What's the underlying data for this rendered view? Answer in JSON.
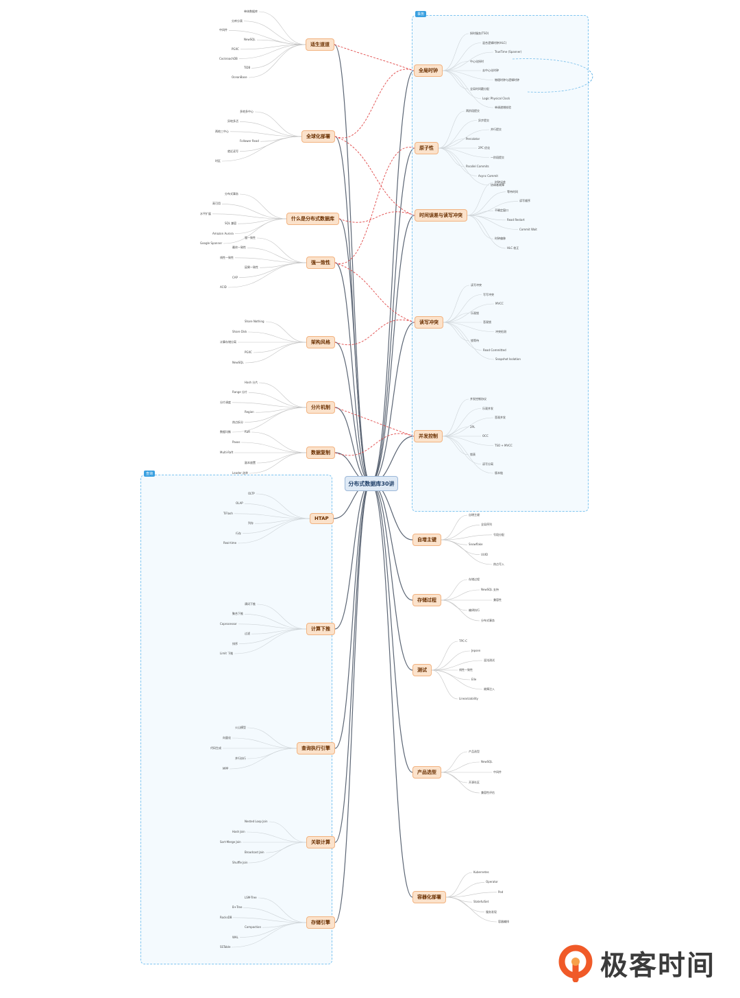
{
  "center": {
    "title": "分布式数据库30讲"
  },
  "group_tags": {
    "right": "事务",
    "left": "查询"
  },
  "branches_left": [
    {
      "id": "l1",
      "label": "适生道道"
    },
    {
      "id": "l2",
      "label": "全球化部署"
    },
    {
      "id": "l3",
      "label": "什么是分布式数据库"
    },
    {
      "id": "l4",
      "label": "强一致性"
    },
    {
      "id": "l5",
      "label": "架构风格"
    },
    {
      "id": "l6",
      "label": "分片机制"
    },
    {
      "id": "l7",
      "label": "数据复制"
    },
    {
      "id": "l8",
      "label": "HTAP"
    },
    {
      "id": "l9",
      "label": "计算下推"
    },
    {
      "id": "l10",
      "label": "查询执行引擎"
    },
    {
      "id": "l11",
      "label": "关联计算"
    },
    {
      "id": "l12",
      "label": "存储引擎"
    }
  ],
  "branches_right": [
    {
      "id": "r1",
      "label": "全局时钟"
    },
    {
      "id": "r2",
      "label": "原子性"
    },
    {
      "id": "r3",
      "label": "时间误差与读写冲突"
    },
    {
      "id": "r4",
      "label": "读写冲突"
    },
    {
      "id": "r5",
      "label": "并发控制"
    },
    {
      "id": "r6",
      "label": "自增主键"
    },
    {
      "id": "r7",
      "label": "存储过程"
    },
    {
      "id": "r8",
      "label": "测试"
    },
    {
      "id": "r9",
      "label": "产品选型"
    },
    {
      "id": "r10",
      "label": "容器化部署"
    }
  ],
  "leaves_right": [
    [
      "授时服务(TSO)",
      "混合逻辑时钟(HLC)",
      "TrueTime (Spanner)",
      "中心化授时",
      "去中心化时钟",
      "物理时钟与逻辑时钟",
      "全局时间戳分配",
      "Logic Physical Clock",
      "单调递增校验"
    ],
    [
      "两阶段提交",
      "异步提交",
      "并行提交",
      "Percolator",
      "2PC 优化",
      "一阶段提交",
      "Parallel Commits",
      "Async Commit",
      "协调者故障"
    ],
    [
      "时钟误差",
      "等待时间",
      "读写顺序",
      "不确定窗口",
      "Read Restart",
      "Commit Wait",
      "时钟偏移",
      "HLC 校正"
    ],
    [
      "读写冲突",
      "写写冲突",
      "MVCC",
      "乐观锁",
      "悲观锁",
      "冲突检测",
      "锁等待",
      "Read Committed",
      "Snapshot Isolation"
    ],
    [
      "并发控制协议",
      "乐观并发",
      "悲观并发",
      "2PL",
      "OCC",
      "TSO + MVCC",
      "锁表",
      "读写分离",
      "版本链"
    ],
    [
      "自增主键",
      "全局序列",
      "号段分配",
      "Snowflake",
      "UUID",
      "热点写入"
    ],
    [
      "存储过程",
      "NewSQL 支持",
      "兼容性",
      "编译执行",
      "分布式事务"
    ],
    [
      "TPC-C",
      "Jepsen",
      "混沌测试",
      "线性一致性",
      "Elle",
      "故障注入",
      "Linearizability"
    ],
    [
      "产品选型",
      "NewSQL",
      "中间件",
      "开源社区",
      "兼容性评估"
    ],
    [
      "Kubernetes",
      "Operator",
      "Pod",
      "StatefulSet",
      "服务发现",
      "容器编排"
    ]
  ],
  "leaves_left": [
    [
      "单体数据库",
      "分库分表",
      "中间件",
      "NewSQL",
      "PGXC",
      "CockroachDB",
      "TiDB",
      "OceanBase"
    ],
    [
      "多地多中心",
      "异地多活",
      "两地三中心",
      "Follower Read",
      "就近读写",
      "时区"
    ],
    [
      "分布式事务",
      "高可用",
      "水平扩展",
      "SQL 兼容",
      "Amazon Aurora",
      "Google Spanner"
    ],
    [
      "强一致性",
      "最终一致性",
      "线性一致性",
      "因果一致性",
      "CAP",
      "ACID"
    ],
    [
      "Share Nothing",
      "Share Disk",
      "计算存储分离",
      "PGXC",
      "NewSQL"
    ],
    [
      "Hash 分片",
      "Range 分片",
      "分片调度",
      "Region",
      "热点拆分",
      "数据均衡"
    ],
    [
      "Raft",
      "Paxos",
      "Multi-Raft",
      "副本放置",
      "Leader 选举"
    ],
    [
      "OLTP",
      "OLAP",
      "TiFlash",
      "列存",
      "行存",
      "Real-time"
    ],
    [
      "谓词下推",
      "聚合下推",
      "Coprocessor",
      "过滤",
      "排序",
      "Limit 下推"
    ],
    [
      "火山模型",
      "向量化",
      "代码生成",
      "并行执行",
      "MPP"
    ],
    [
      "Nested Loop Join",
      "Hash Join",
      "Sort-Merge Join",
      "Broadcast Join",
      "Shuffle Join"
    ],
    [
      "LSM-Tree",
      "B+Tree",
      "RocksDB",
      "Compaction",
      "WAL",
      "SSTable"
    ]
  ],
  "colors": {
    "branch_fill": "#fbe2cb",
    "branch_border": "#f2b27f",
    "line_main": "#5a6473",
    "line_cross": "#e04545",
    "group_border": "#7dc4f0",
    "center_fill": "#dfeaf6"
  },
  "logo": {
    "text": "极客时间",
    "icon": "geektime-logo-icon"
  }
}
